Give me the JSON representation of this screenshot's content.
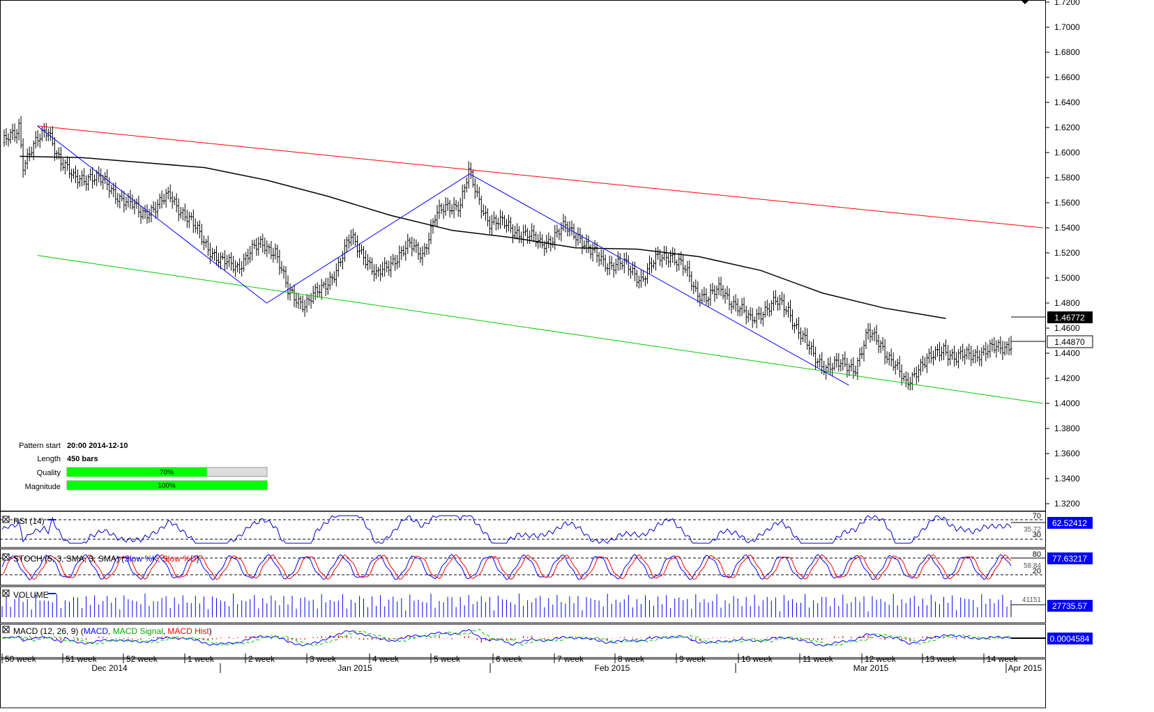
{
  "price_axis": {
    "ticks": [
      "1.7200",
      "1.7000",
      "1.6800",
      "1.6600",
      "1.6400",
      "1.6200",
      "1.6000",
      "1.5800",
      "1.5600",
      "1.5400",
      "1.5200",
      "1.5000",
      "1.4800",
      "1.4600",
      "1.4400",
      "1.4200",
      "1.4000",
      "1.3800",
      "1.3600",
      "1.3400",
      "1.3200"
    ],
    "last_price_label": "1.44870",
    "ma_label": "1.46772"
  },
  "pattern_info": {
    "start_label": "Pattern start",
    "start_value": "20:00 2014-12-10",
    "length_label": "Length",
    "length_value": "450 bars",
    "quality_label": "Quality",
    "quality_pct": 70,
    "quality_text": "70%",
    "magnitude_label": "Magnitude",
    "magnitude_pct": 100,
    "magnitude_text": "100%"
  },
  "rsi": {
    "title": "RSI (14)",
    "value_label": "62.52412",
    "level_high": "70",
    "level_low": "30",
    "hidden_label": "35.72"
  },
  "stoch": {
    "title_prefix": "STOCH (5, 3, SMA, 3, SMA) (",
    "k_label": "Slow %K",
    "sep": ", ",
    "d_label": "Slow %D",
    "title_suffix": ")",
    "value_label": "77.63217",
    "level_high": "80",
    "level_low": "20",
    "hidden_label": "58.84"
  },
  "volume": {
    "title": "VOLUME",
    "value_label": "27735.57",
    "hidden_label": "41151"
  },
  "macd": {
    "title_prefix": "MACD (12, 26, 9) (",
    "macd_label": "MACD",
    "sep1": ", ",
    "signal_label": "MACD Signal",
    "sep2": ", ",
    "hist_label": "MACD Hist",
    "title_suffix": ")",
    "value_label": "0.0004584"
  },
  "time_axis": {
    "weeks": [
      "50 week",
      "51 week",
      "52 week",
      "1 week",
      "2 week",
      "3 week",
      "4 week",
      "5 week",
      "6 week",
      "7 week",
      "8 week",
      "9 week",
      "10 week",
      "11 week",
      "12 week",
      "13 week",
      "14 week"
    ],
    "months": [
      "Dec 2014",
      "Jan 2015",
      "Feb 2015",
      "Mar 2015",
      "Apr 2015"
    ]
  },
  "colors": {
    "candles": "#000000",
    "moving_average": "#000000",
    "resistance_line": "#ff0000",
    "support_line": "#00cc00",
    "pattern_zigzag": "#0000ff",
    "rsi_line": "#0000cc",
    "stoch_k": "#0000ff",
    "stoch_d": "#ff0000",
    "macd": "#0000ff",
    "macd_signal": "#00cc00",
    "macd_hist": "#ff0000",
    "value_box": "#0000ff",
    "bar_fill": "#00ff00"
  },
  "chart_data": {
    "type": "candlestick",
    "instrument_axis": "price",
    "ylim": [
      1.31,
      1.72
    ],
    "pattern_points": [
      {
        "x": "2014-12-10",
        "price": 1.6212
      },
      {
        "x": "2015-01-05",
        "price": 1.48
      },
      {
        "x": "2015-01-28",
        "price": 1.583
      },
      {
        "x": "2015-03-12",
        "price": 1.4145
      }
    ],
    "resistance_line": [
      {
        "x": "2014-12-10",
        "price": 1.6212
      },
      {
        "x": "2015-04-03",
        "price": 1.54
      }
    ],
    "support_line": [
      {
        "x": "2014-12-10",
        "price": 1.518
      },
      {
        "x": "2015-04-03",
        "price": 1.4
      }
    ],
    "moving_average_path": [
      {
        "x": "2014-12-08",
        "price": 1.597
      },
      {
        "x": "2014-12-15",
        "price": 1.596
      },
      {
        "x": "2014-12-22",
        "price": 1.592
      },
      {
        "x": "2014-12-29",
        "price": 1.588
      },
      {
        "x": "2015-01-05",
        "price": 1.578
      },
      {
        "x": "2015-01-12",
        "price": 1.565
      },
      {
        "x": "2015-01-19",
        "price": 1.55
      },
      {
        "x": "2015-01-26",
        "price": 1.538
      },
      {
        "x": "2015-02-02",
        "price": 1.532
      },
      {
        "x": "2015-02-09",
        "price": 1.524
      },
      {
        "x": "2015-02-16",
        "price": 1.523
      },
      {
        "x": "2015-02-23",
        "price": 1.517
      },
      {
        "x": "2015-03-02",
        "price": 1.506
      },
      {
        "x": "2015-03-09",
        "price": 1.488
      },
      {
        "x": "2015-03-16",
        "price": 1.476
      },
      {
        "x": "2015-03-23",
        "price": 1.4677
      }
    ],
    "last_close": 1.4487,
    "ma_last": 1.46772
  }
}
